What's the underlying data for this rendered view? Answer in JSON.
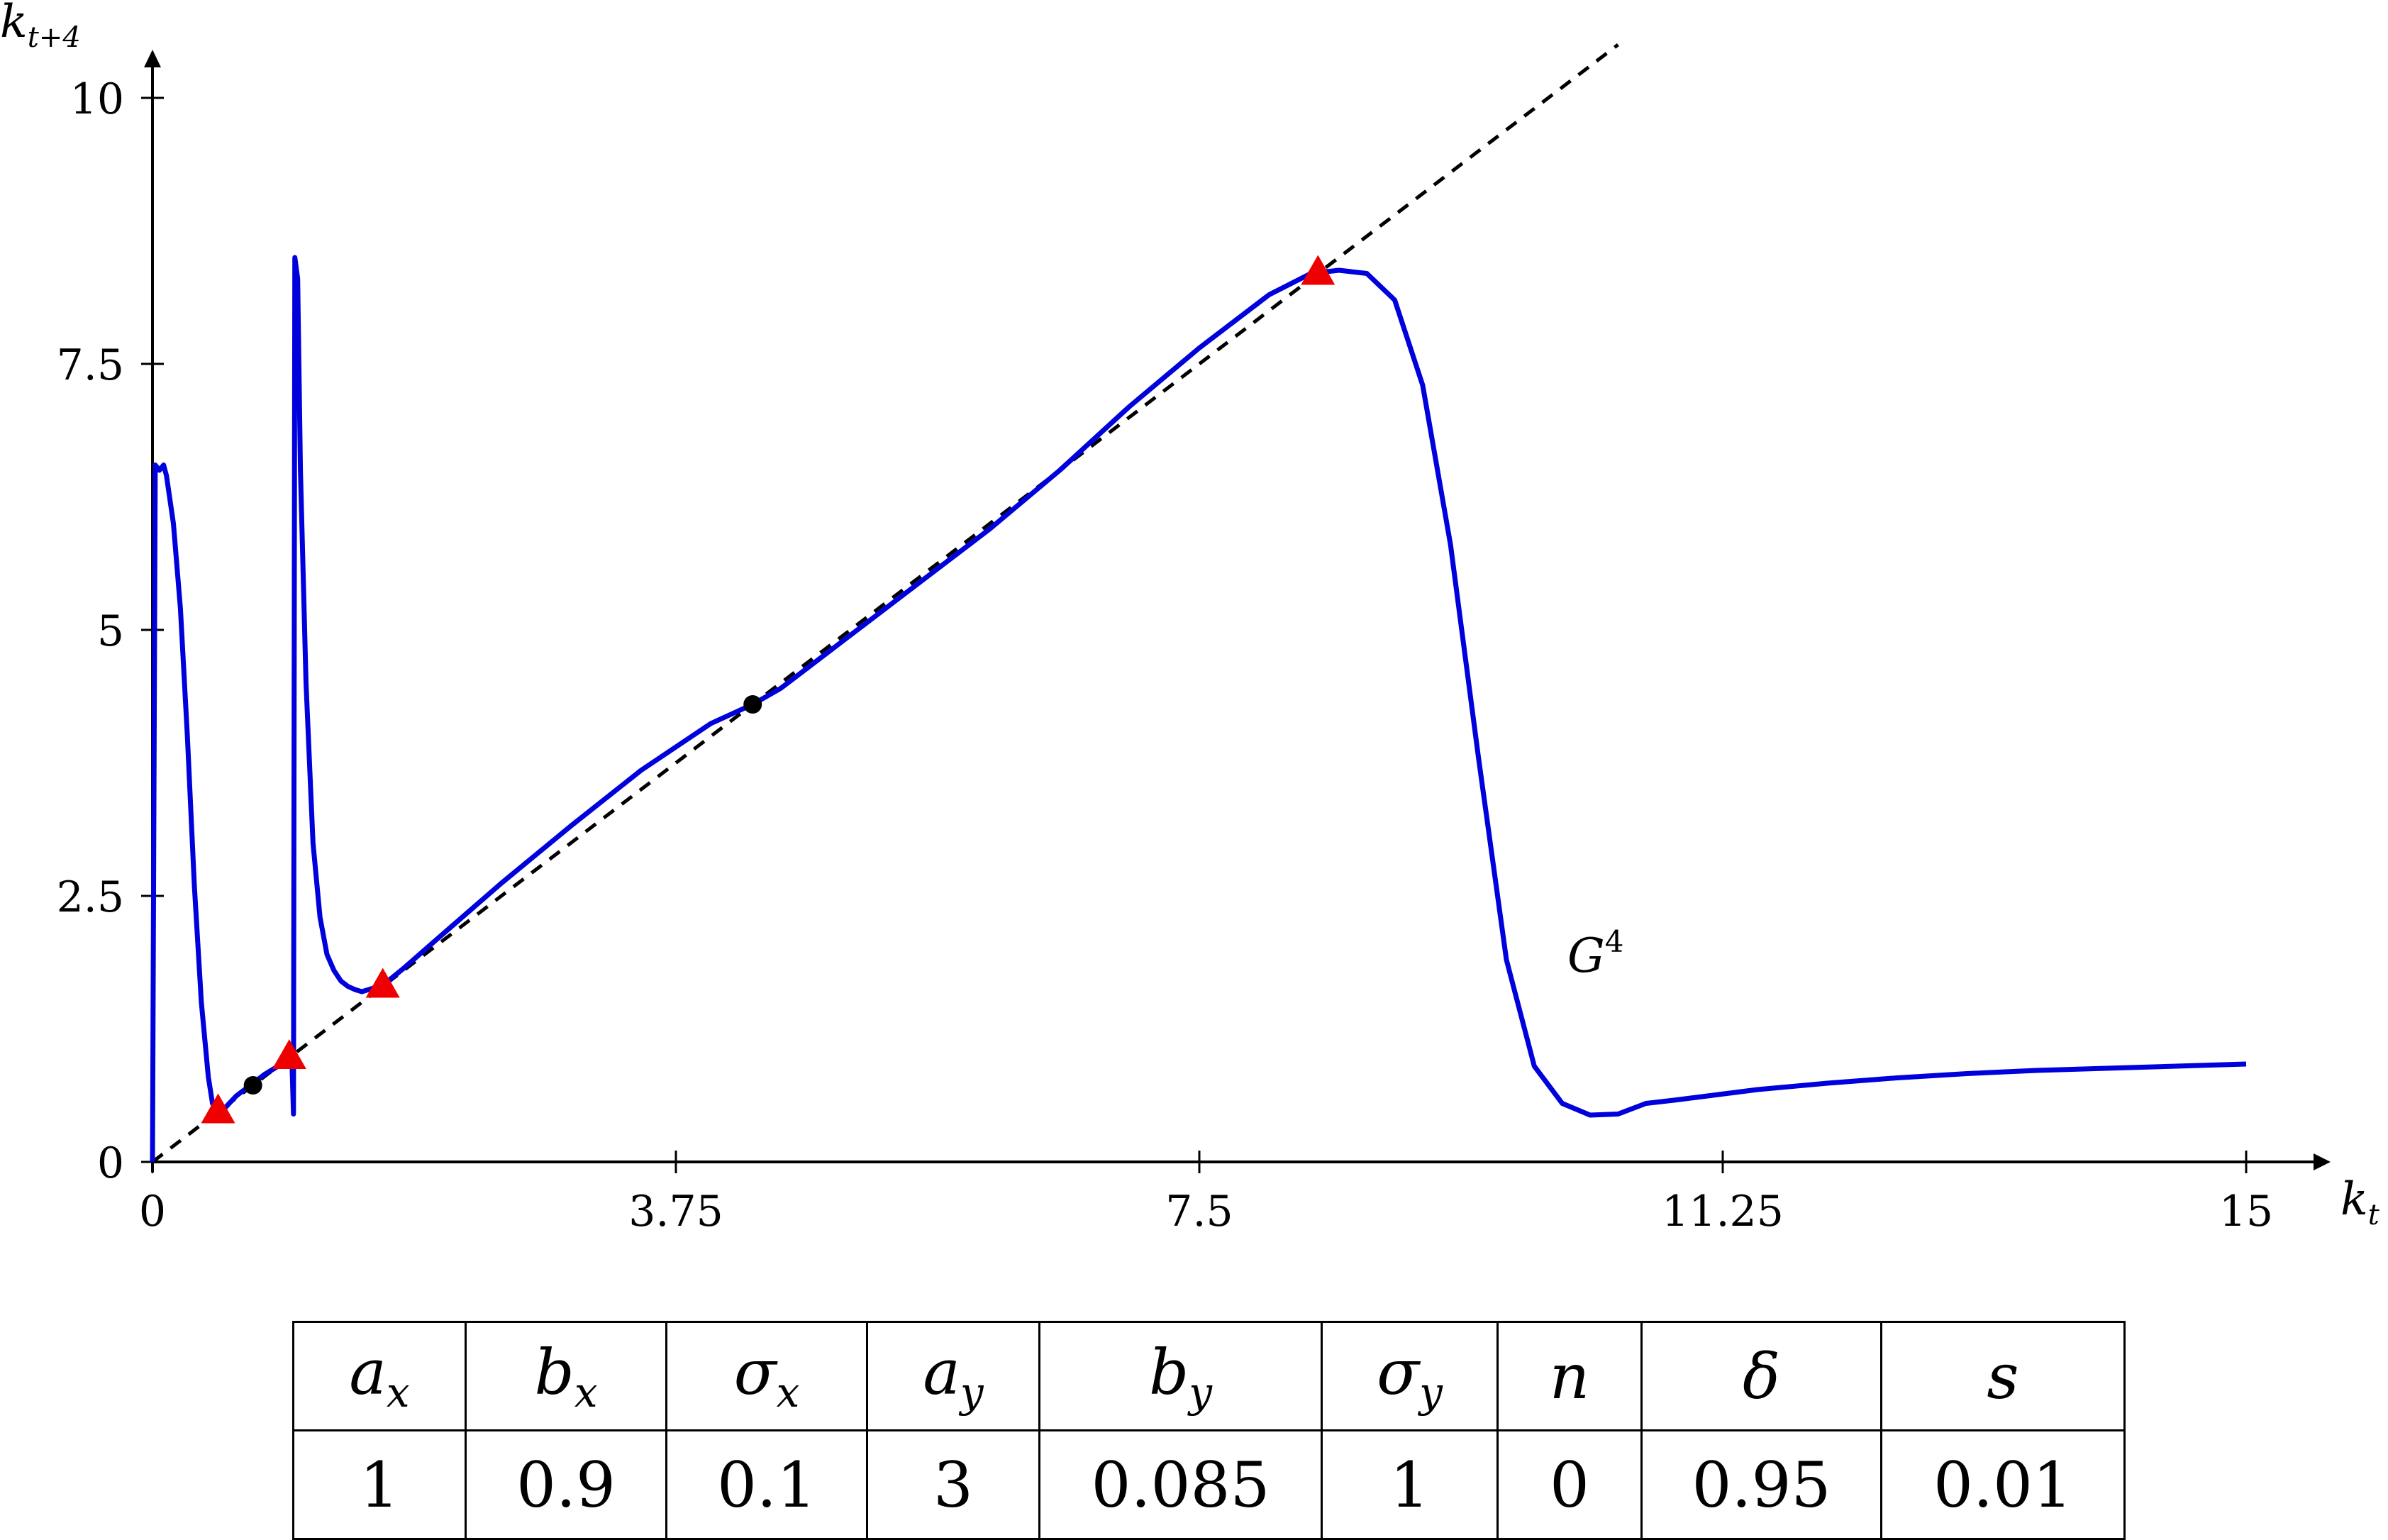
{
  "chart_data": {
    "type": "line",
    "xlabel": "k",
    "xlabel_sub": "t",
    "ylabel": "k",
    "ylabel_sub": "t+4",
    "xlim": [
      0,
      15
    ],
    "ylim": [
      0,
      10
    ],
    "xticks": [
      0,
      3.75,
      7.5,
      11.25,
      15
    ],
    "xtick_labels": [
      "0",
      "3.75",
      "7.5",
      "11.25",
      "15"
    ],
    "yticks": [
      0,
      2.5,
      5,
      7.5,
      10
    ],
    "ytick_labels": [
      "0",
      "2.5",
      "5",
      "7.5",
      "10"
    ],
    "curve_label": "G",
    "curve_label_sup": "4",
    "colors": {
      "curve": "#0000dd",
      "triangle": "#ee0000",
      "dot": "#000000",
      "diagonal": "#000000"
    },
    "diagonal": {
      "style": "dashed",
      "x": [
        0,
        10.5
      ],
      "y": [
        0,
        10.5
      ]
    },
    "series": [
      {
        "x": [
          0.0,
          0.02,
          0.05,
          0.08,
          0.1,
          0.15,
          0.2,
          0.25,
          0.3,
          0.35,
          0.4,
          0.43,
          0.47,
          0.5,
          0.55,
          0.6,
          0.7,
          0.8,
          0.9,
          0.98,
          1.0,
          1.01,
          1.02,
          1.04,
          1.06,
          1.1,
          1.15,
          1.2,
          1.25,
          1.3,
          1.35,
          1.4,
          1.45,
          1.5,
          1.6,
          1.65,
          1.8,
          2.0,
          2.5,
          3.0,
          3.5,
          4.0,
          4.3,
          4.5,
          5.0,
          5.5,
          6.0,
          6.5,
          7.0,
          7.5,
          8.0,
          8.3,
          8.5,
          8.7,
          8.9,
          9.1,
          9.3,
          9.5,
          9.7,
          9.9,
          10.1,
          10.3,
          10.5,
          10.6,
          10.7,
          10.9,
          11.2,
          11.5,
          12.0,
          12.5,
          13.0,
          13.5,
          14.0,
          14.5,
          15.0
        ],
        "y": [
          0.0,
          6.55,
          6.5,
          6.55,
          6.45,
          6.0,
          5.2,
          4.0,
          2.6,
          1.5,
          0.8,
          0.55,
          0.45,
          0.48,
          0.55,
          0.62,
          0.72,
          0.82,
          0.9,
          0.96,
          0.9,
          0.45,
          8.5,
          8.3,
          6.5,
          4.5,
          3.0,
          2.3,
          1.95,
          1.8,
          1.7,
          1.65,
          1.62,
          1.6,
          1.64,
          1.66,
          1.82,
          2.05,
          2.62,
          3.16,
          3.68,
          4.12,
          4.3,
          4.45,
          4.95,
          5.45,
          5.95,
          6.5,
          7.1,
          7.65,
          8.15,
          8.35,
          8.38,
          8.35,
          8.1,
          7.3,
          5.8,
          3.8,
          1.9,
          0.9,
          0.55,
          0.44,
          0.45,
          0.5,
          0.55,
          0.58,
          0.63,
          0.68,
          0.74,
          0.79,
          0.83,
          0.86,
          0.88,
          0.9,
          0.92
        ]
      }
    ],
    "triangle_points": [
      {
        "x": 0.47,
        "y": 0.47
      },
      {
        "x": 0.98,
        "y": 0.98
      },
      {
        "x": 1.65,
        "y": 1.65
      },
      {
        "x": 8.35,
        "y": 8.35
      }
    ],
    "dot_points": [
      {
        "x": 0.72,
        "y": 0.72
      },
      {
        "x": 4.3,
        "y": 4.3
      }
    ]
  },
  "table": {
    "headers": [
      {
        "base": "a",
        "sub": "x"
      },
      {
        "base": "b",
        "sub": "x"
      },
      {
        "base": "σ",
        "sub": "x"
      },
      {
        "base": "a",
        "sub": "y"
      },
      {
        "base": "b",
        "sub": "y"
      },
      {
        "base": "σ",
        "sub": "y"
      },
      {
        "base": "n",
        "sub": ""
      },
      {
        "base": "δ",
        "sub": ""
      },
      {
        "base": "s",
        "sub": ""
      }
    ],
    "values": [
      "1",
      "0.9",
      "0.1",
      "3",
      "0.085",
      "1",
      "0",
      "0.95",
      "0.01"
    ]
  }
}
